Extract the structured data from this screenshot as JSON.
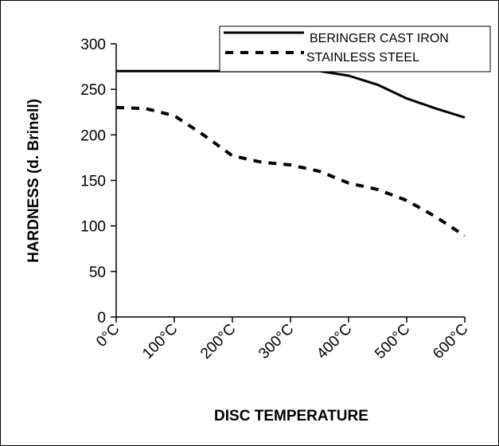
{
  "chart_data": {
    "type": "line",
    "title": "",
    "xlabel": "DISC TEMPERATURE",
    "ylabel": "HARDNESS (d. Brinell)",
    "categories": [
      "0°C",
      "100°C",
      "200°C",
      "300°C",
      "400°C",
      "500°C",
      "600°C"
    ],
    "x": [
      0,
      50,
      100,
      150,
      200,
      250,
      300,
      350,
      400,
      450,
      500,
      550,
      600
    ],
    "yticks": [
      0,
      50,
      100,
      150,
      200,
      250,
      300
    ],
    "ylim": [
      0,
      300
    ],
    "xlim": [
      0,
      600
    ],
    "grid": false,
    "legend_position": "top-right",
    "series": [
      {
        "name": "BERINGER CAST IRON",
        "style": "solid",
        "color": "#000000",
        "values": [
          270,
          270,
          270,
          270,
          270,
          270,
          270,
          270,
          265,
          255,
          240,
          229,
          219
        ]
      },
      {
        "name": "STAINLESS STEEL",
        "style": "dashed",
        "color": "#000000",
        "values": [
          230,
          229,
          221,
          200,
          177,
          170,
          167,
          160,
          147,
          140,
          128,
          110,
          89
        ]
      }
    ]
  }
}
